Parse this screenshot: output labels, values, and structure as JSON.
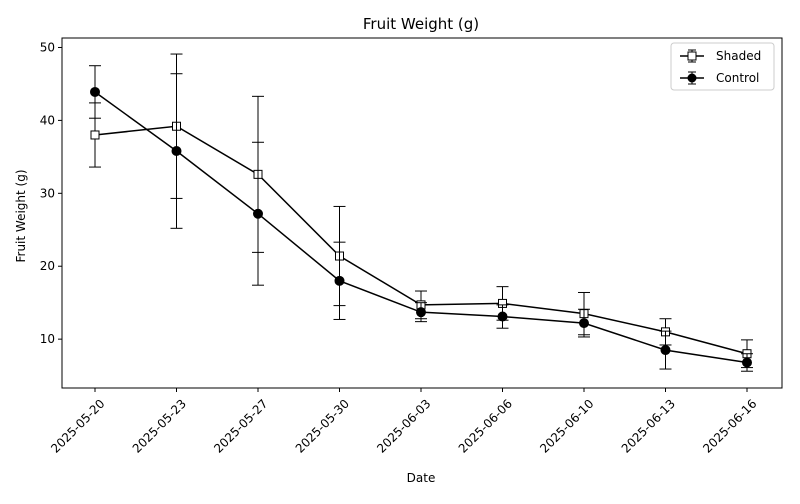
{
  "chart_data": {
    "type": "line",
    "title": "Fruit Weight (g)",
    "xlabel": "Date",
    "ylabel": "Fruit Weight (g)",
    "x": [
      "2025-05-20",
      "2025-05-23",
      "2025-05-27",
      "2025-05-30",
      "2025-06-03",
      "2025-06-06",
      "2025-06-10",
      "2025-06-13",
      "2025-06-16"
    ],
    "ylim": [
      3.3,
      51.3
    ],
    "yticks": [
      10,
      20,
      30,
      40,
      50
    ],
    "grid": false,
    "legend": "top-right",
    "error_bars": true,
    "series": [
      {
        "name": "Shaded",
        "marker": "square-open",
        "color": "#000000",
        "values": [
          38.0,
          39.2,
          32.6,
          21.4,
          14.7,
          14.9,
          13.5,
          11.0,
          8.0
        ],
        "err": [
          4.4,
          9.9,
          10.7,
          6.8,
          1.9,
          2.3,
          2.9,
          1.8,
          1.9
        ]
      },
      {
        "name": "Control",
        "marker": "circle-filled",
        "color": "#000000",
        "values": [
          43.9,
          35.8,
          27.2,
          18.0,
          13.7,
          13.1,
          12.2,
          8.5,
          6.8
        ],
        "err": [
          3.6,
          10.6,
          9.8,
          5.3,
          1.3,
          1.6,
          1.9,
          2.6,
          1.2
        ]
      }
    ]
  }
}
